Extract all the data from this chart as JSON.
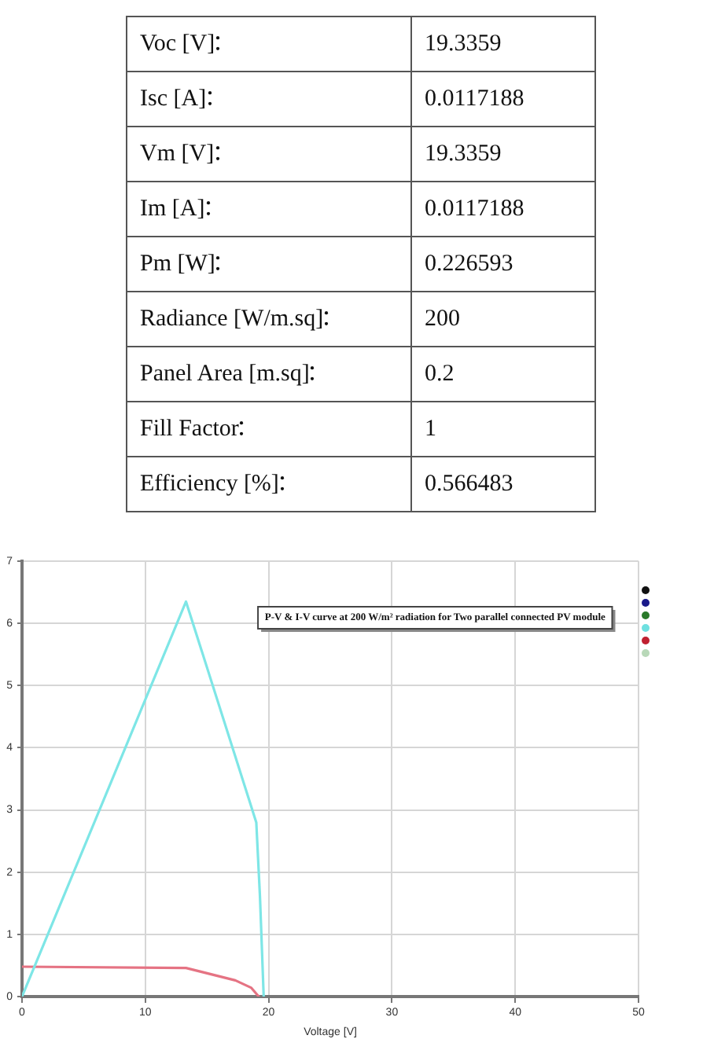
{
  "chart_data": [
    {
      "type": "other",
      "categories": [
        "Voc [V]",
        "Isc [A]",
        "Vm [V]",
        "Im [A]",
        "Pm [W]",
        "Radiance [W/m.sq]",
        "Panel Area [m.sq]",
        "Fill Factor",
        "Efficiency [%]"
      ],
      "values": [
        19.3359,
        0.0117188,
        19.3359,
        0.0117188,
        0.226593,
        200,
        0.2,
        1,
        0.566483
      ],
      "data_labels": true
    },
    {
      "type": "line",
      "xlabel": "Voltage [V]",
      "annotations": [
        "P-V & I-V curve at 200 W/m² radiation for Two parallel connected PV module"
      ],
      "series": [
        {
          "color": "#7ee6e6",
          "x": [
            0,
            13.3,
            19.0,
            19.3,
            19.6
          ],
          "values": [
            0,
            6.35,
            2.8,
            1.6,
            0
          ]
        },
        {
          "color": "#e57383",
          "x": [
            0,
            13.3,
            17.3,
            18.6,
            19.2
          ],
          "values": [
            0.48,
            0.46,
            0.26,
            0.14,
            0
          ]
        }
      ],
      "xlim": [
        0,
        50
      ],
      "xticks": [
        0,
        10,
        20,
        30,
        40,
        50
      ],
      "ylim": [
        0,
        7
      ],
      "yticks": [
        0,
        1,
        2,
        3,
        4,
        5,
        6,
        7
      ],
      "grid": true,
      "marker": "none"
    }
  ]
}
